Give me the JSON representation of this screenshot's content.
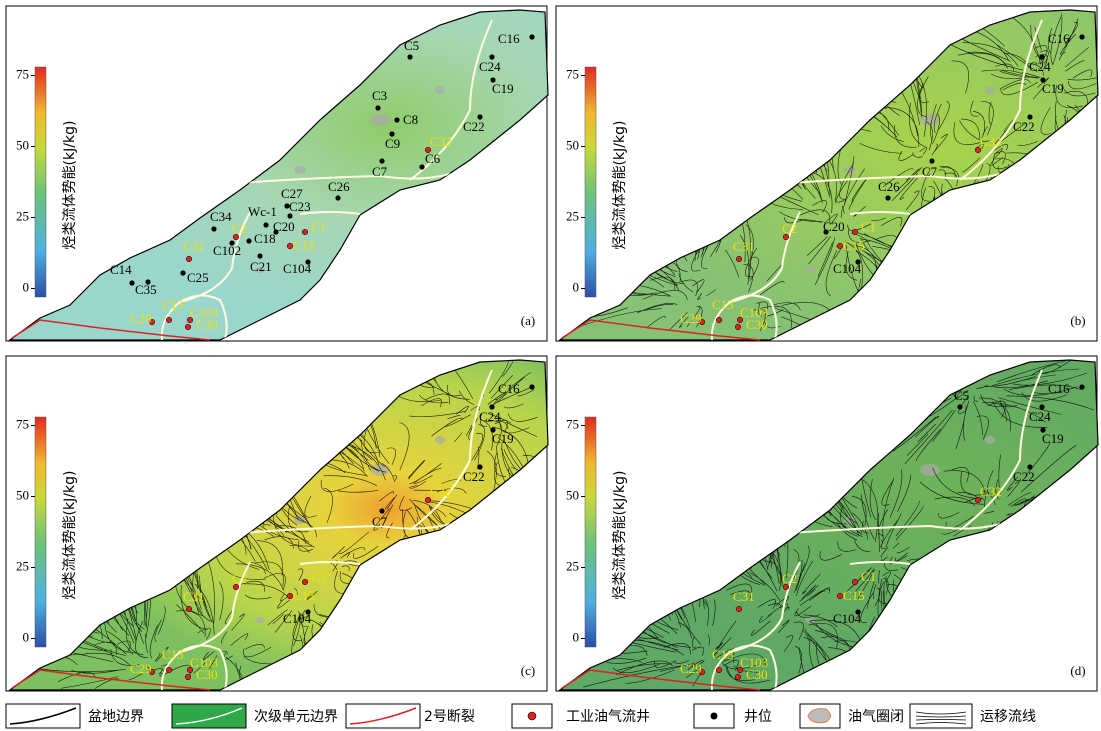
{
  "panels": [
    {
      "label": "(a)",
      "colorbar": {
        "title": "烃类流体势能(kJ/kg)",
        "lim": [
          -3,
          78
        ],
        "ticks": [
          0,
          25,
          50,
          75
        ]
      },
      "wells": [
        "C5",
        "C16",
        "C24",
        "C19",
        "C3",
        "C8",
        "C22",
        "C9",
        "C7",
        "C6",
        "C26",
        "C27",
        "C23",
        "C34",
        "Wc-1",
        "C20",
        "C18",
        "C102",
        "C21",
        "C104",
        "C14",
        "C25",
        "C35"
      ],
      "industrial_wells": [
        "C32",
        "C1",
        "C2",
        "C15",
        "C31",
        "C13",
        "C103",
        "C29",
        "C30"
      ]
    },
    {
      "label": "(b)",
      "colorbar": {
        "title": "烃类流体势能(kJ/kg)",
        "lim": [
          -3,
          78
        ],
        "ticks": [
          0,
          25,
          50,
          75
        ]
      },
      "wells": [
        "C16",
        "C24",
        "C19",
        "C22",
        "C7",
        "C26",
        "C20",
        "C104"
      ],
      "industrial_wells": [
        "C32",
        "C1",
        "C2",
        "C15",
        "C31",
        "C13",
        "C103",
        "C29",
        "C30"
      ]
    },
    {
      "label": "(c)",
      "colorbar": {
        "title": "烃类流体势能(kJ/kg)",
        "lim": [
          -3,
          78
        ],
        "ticks": [
          0,
          25,
          50,
          75
        ]
      },
      "wells": [
        "C16",
        "C24",
        "C19",
        "C22",
        "C104",
        "C7"
      ],
      "industrial_wells": [
        "C32",
        "C1",
        "C2",
        "C15",
        "C31",
        "C13",
        "C103",
        "C29",
        "C30"
      ]
    },
    {
      "label": "(d)",
      "colorbar": {
        "title": "烃类流体势能(kJ/kg)",
        "lim": [
          -3,
          78
        ],
        "ticks": [
          0,
          25,
          50,
          75
        ]
      },
      "wells": [
        "C16",
        "C5",
        "C24",
        "C19",
        "C22",
        "C104"
      ],
      "industrial_wells": [
        "C32",
        "C1",
        "C2",
        "C15",
        "C31",
        "C13",
        "C103",
        "C29",
        "C30"
      ]
    }
  ],
  "legend": [
    "盆地边界",
    "次级单元边界",
    "2号断裂",
    "工业油气流井",
    "井位",
    "油气圈闭",
    "运移流线"
  ]
}
